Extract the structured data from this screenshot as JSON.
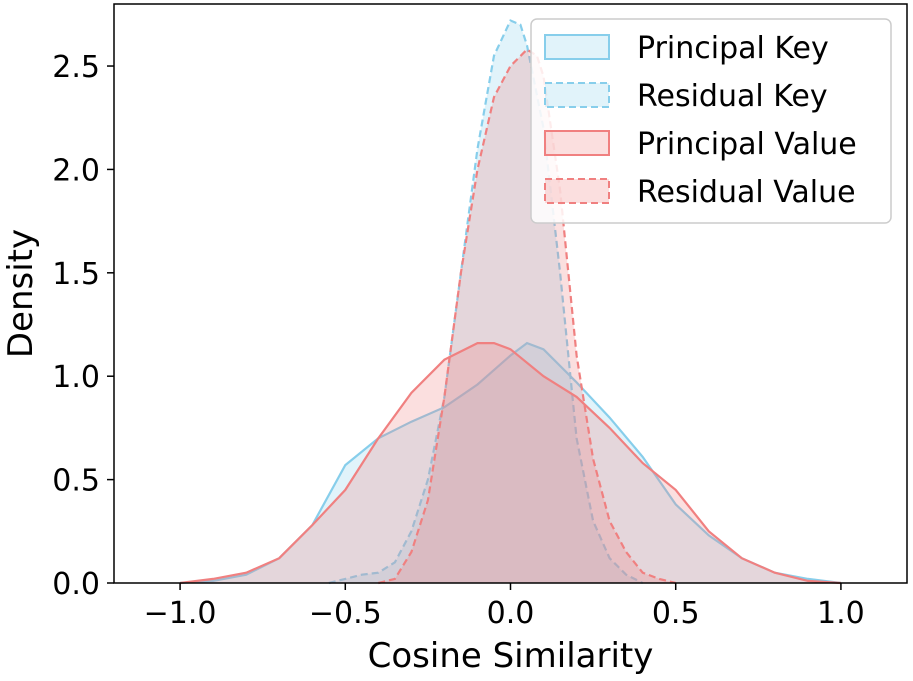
{
  "chart_data": {
    "type": "area",
    "xlabel": "Cosine Similarity",
    "ylabel": "Density",
    "xlim": [
      -1.2,
      1.2
    ],
    "ylim": [
      0.0,
      2.8
    ],
    "xticks": [
      -1.0,
      -0.5,
      0.0,
      0.5,
      1.0
    ],
    "xtick_labels": [
      "−1.0",
      "−0.5",
      "0.0",
      "0.5",
      "1.0"
    ],
    "yticks": [
      0.0,
      0.5,
      1.0,
      1.5,
      2.0,
      2.5
    ],
    "ytick_labels": [
      "0.0",
      "0.5",
      "1.0",
      "1.5",
      "2.0",
      "2.5"
    ],
    "grid": false,
    "legend_position": "top-right",
    "series": [
      {
        "name": "Principal Key",
        "color": "#87ceeb",
        "dashed": false,
        "points": [
          [
            -1.0,
            0.0
          ],
          [
            -0.9,
            0.01
          ],
          [
            -0.8,
            0.04
          ],
          [
            -0.7,
            0.12
          ],
          [
            -0.6,
            0.28
          ],
          [
            -0.5,
            0.57
          ],
          [
            -0.4,
            0.7
          ],
          [
            -0.3,
            0.78
          ],
          [
            -0.2,
            0.85
          ],
          [
            -0.1,
            0.96
          ],
          [
            0.0,
            1.1
          ],
          [
            0.05,
            1.16
          ],
          [
            0.1,
            1.13
          ],
          [
            0.2,
            0.97
          ],
          [
            0.3,
            0.8
          ],
          [
            0.4,
            0.61
          ],
          [
            0.5,
            0.38
          ],
          [
            0.6,
            0.23
          ],
          [
            0.7,
            0.12
          ],
          [
            0.8,
            0.05
          ],
          [
            0.9,
            0.02
          ],
          [
            1.0,
            0.0
          ]
        ]
      },
      {
        "name": "Residual Key",
        "color": "#87ceeb",
        "dashed": true,
        "points": [
          [
            -0.55,
            0.0
          ],
          [
            -0.5,
            0.02
          ],
          [
            -0.45,
            0.04
          ],
          [
            -0.4,
            0.05
          ],
          [
            -0.35,
            0.1
          ],
          [
            -0.3,
            0.25
          ],
          [
            -0.25,
            0.5
          ],
          [
            -0.2,
            0.9
          ],
          [
            -0.15,
            1.5
          ],
          [
            -0.1,
            2.1
          ],
          [
            -0.05,
            2.55
          ],
          [
            0.0,
            2.72
          ],
          [
            0.03,
            2.7
          ],
          [
            0.05,
            2.6
          ],
          [
            0.1,
            2.2
          ],
          [
            0.15,
            1.5
          ],
          [
            0.2,
            0.7
          ],
          [
            0.25,
            0.3
          ],
          [
            0.3,
            0.12
          ],
          [
            0.35,
            0.04
          ],
          [
            0.4,
            0.0
          ]
        ]
      },
      {
        "name": "Principal Value",
        "color": "#f08080",
        "dashed": false,
        "points": [
          [
            -1.0,
            0.0
          ],
          [
            -0.9,
            0.02
          ],
          [
            -0.8,
            0.05
          ],
          [
            -0.7,
            0.12
          ],
          [
            -0.6,
            0.28
          ],
          [
            -0.5,
            0.45
          ],
          [
            -0.4,
            0.7
          ],
          [
            -0.3,
            0.92
          ],
          [
            -0.2,
            1.08
          ],
          [
            -0.1,
            1.16
          ],
          [
            -0.05,
            1.16
          ],
          [
            0.0,
            1.13
          ],
          [
            0.1,
            1.0
          ],
          [
            0.2,
            0.9
          ],
          [
            0.3,
            0.75
          ],
          [
            0.4,
            0.58
          ],
          [
            0.5,
            0.45
          ],
          [
            0.6,
            0.25
          ],
          [
            0.7,
            0.12
          ],
          [
            0.8,
            0.05
          ],
          [
            0.9,
            0.01
          ],
          [
            1.0,
            0.0
          ]
        ]
      },
      {
        "name": "Residual Value",
        "color": "#f08080",
        "dashed": true,
        "points": [
          [
            -0.4,
            0.0
          ],
          [
            -0.35,
            0.02
          ],
          [
            -0.3,
            0.15
          ],
          [
            -0.25,
            0.4
          ],
          [
            -0.2,
            0.9
          ],
          [
            -0.15,
            1.5
          ],
          [
            -0.1,
            2.0
          ],
          [
            -0.05,
            2.35
          ],
          [
            0.0,
            2.5
          ],
          [
            0.05,
            2.58
          ],
          [
            0.08,
            2.55
          ],
          [
            0.1,
            2.45
          ],
          [
            0.15,
            1.9
          ],
          [
            0.2,
            1.1
          ],
          [
            0.25,
            0.6
          ],
          [
            0.3,
            0.3
          ],
          [
            0.35,
            0.15
          ],
          [
            0.4,
            0.05
          ],
          [
            0.45,
            0.02
          ],
          [
            0.5,
            0.0
          ]
        ]
      }
    ]
  }
}
